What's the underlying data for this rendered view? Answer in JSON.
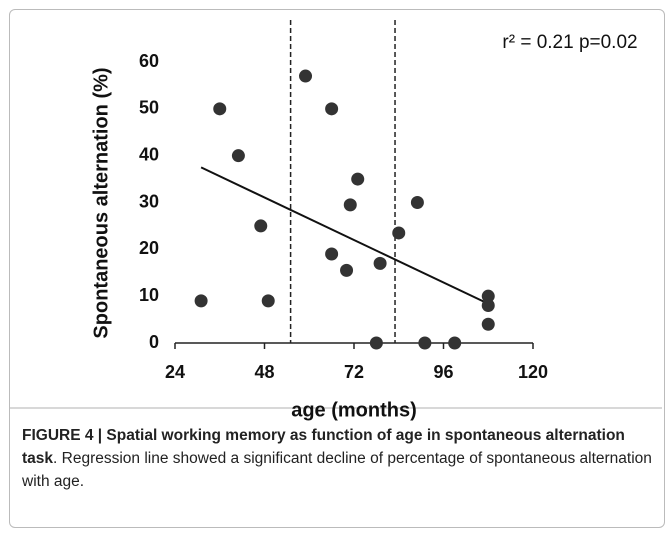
{
  "chart_data": {
    "type": "scatter",
    "x_label": "age (months)",
    "y_label": "Spontaneous alternation (%)",
    "annotation": "r² = 0.21 p=0.02",
    "x": [
      31,
      36,
      41,
      47,
      49,
      59,
      66,
      66,
      70,
      71,
      73,
      78,
      79,
      84,
      89,
      91,
      99,
      108,
      108,
      108
    ],
    "y": [
      9,
      50,
      40,
      25,
      9,
      57,
      50,
      19,
      15.5,
      29.5,
      35,
      0,
      17,
      23.5,
      30,
      0,
      0,
      10,
      8,
      4
    ],
    "color": "#333333",
    "regression": {
      "x": [
        31,
        109
      ],
      "y": [
        37.5,
        8
      ]
    },
    "vlines": [
      55,
      83
    ],
    "xlim": [
      24,
      120
    ],
    "xticks": [
      24,
      48,
      72,
      96,
      120
    ],
    "ylim": [
      0,
      60
    ],
    "yticks": [
      0,
      10,
      20,
      30,
      40,
      50,
      60
    ]
  },
  "caption": {
    "label": "FIGURE 4 | Spatial working memory as function of age in spontaneous alternation task",
    "text": ". Regression line showed a significant decline of percentage of spontaneous alternation with age."
  }
}
